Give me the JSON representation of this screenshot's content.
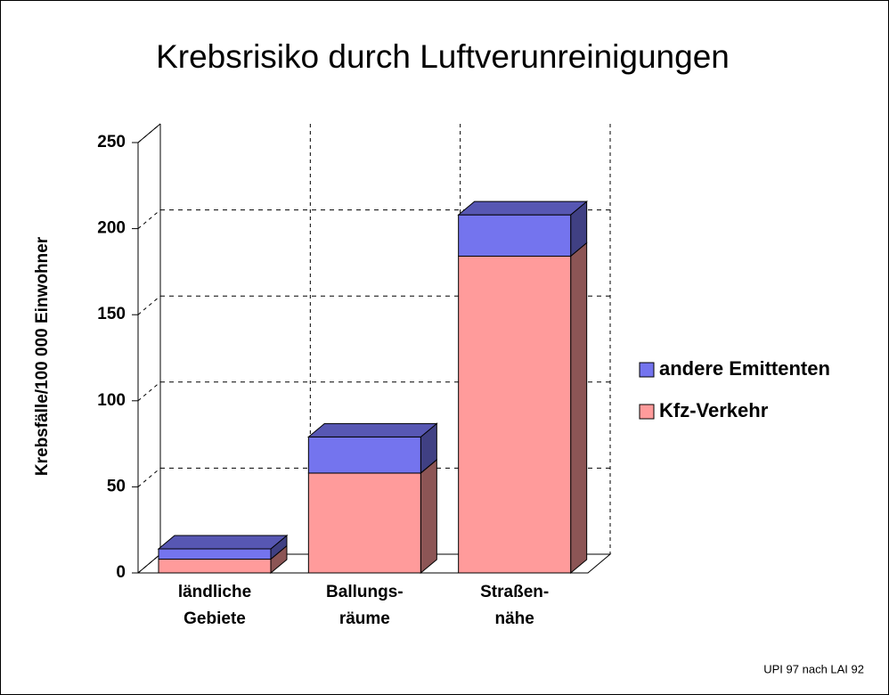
{
  "chart_data": {
    "type": "bar3d_stacked",
    "title": "Krebsrisiko durch Luftverunreinigungen",
    "y_label": "Krebsfälle/100 000 Einwohner",
    "categories": [
      [
        "ländliche",
        "Gebiete"
      ],
      [
        "Ballungs-",
        "räume"
      ],
      [
        "Straßen-",
        "nähe"
      ]
    ],
    "series": [
      {
        "name": "Kfz-Verkehr",
        "color": "#ff9b9b",
        "values": [
          8,
          58,
          184
        ]
      },
      {
        "name": "andere Emittenten",
        "color": "#7474ee",
        "values": [
          6,
          21,
          24
        ]
      }
    ],
    "ylim": [
      0,
      250
    ],
    "yticks": [
      0,
      50,
      100,
      150,
      200,
      250
    ],
    "grid": true,
    "legend": "right",
    "source": "UPI 97 nach LAI 92"
  }
}
